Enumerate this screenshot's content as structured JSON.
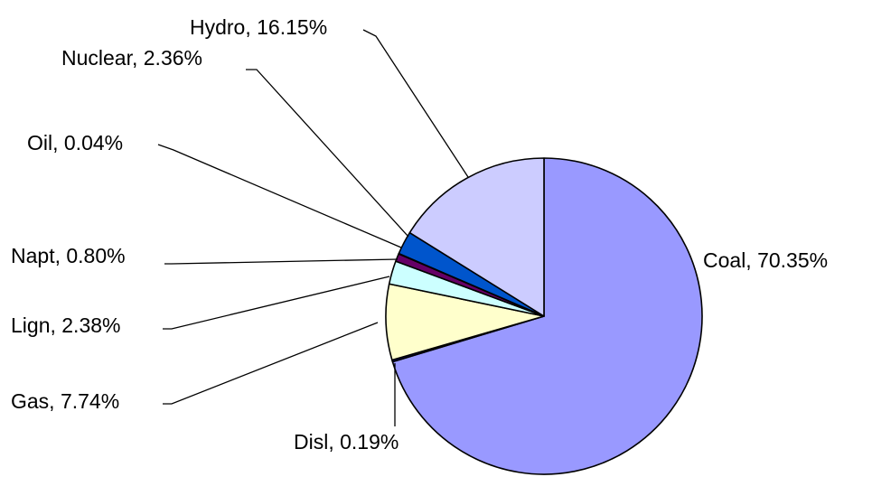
{
  "chart_data": {
    "type": "pie",
    "title": "",
    "slices": [
      {
        "label": "Coal",
        "value": 70.35,
        "text": "Coal, 70.35%",
        "color": "#9999ff"
      },
      {
        "label": "Disl",
        "value": 0.19,
        "text": "Disl, 0.19%",
        "color": "#1a1aa6"
      },
      {
        "label": "Gas",
        "value": 7.74,
        "text": "Gas, 7.74%",
        "color": "#ffffcc"
      },
      {
        "label": "Lign",
        "value": 2.38,
        "text": "Lign, 2.38%",
        "color": "#ccffff"
      },
      {
        "label": "Napt",
        "value": 0.8,
        "text": "Napt, 0.80%",
        "color": "#660066"
      },
      {
        "label": "Oil",
        "value": 0.04,
        "text": "Oil, 0.04%",
        "color": "#ff8080"
      },
      {
        "label": "Nuclear",
        "value": 2.36,
        "text": "Nuclear, 2.36%",
        "color": "#0055cc"
      },
      {
        "label": "Hydro",
        "value": 16.15,
        "text": "Hydro, 16.15%",
        "color": "#ccccff"
      }
    ],
    "start_angle": "12 o'clock",
    "direction": "clockwise",
    "legend": "none"
  }
}
